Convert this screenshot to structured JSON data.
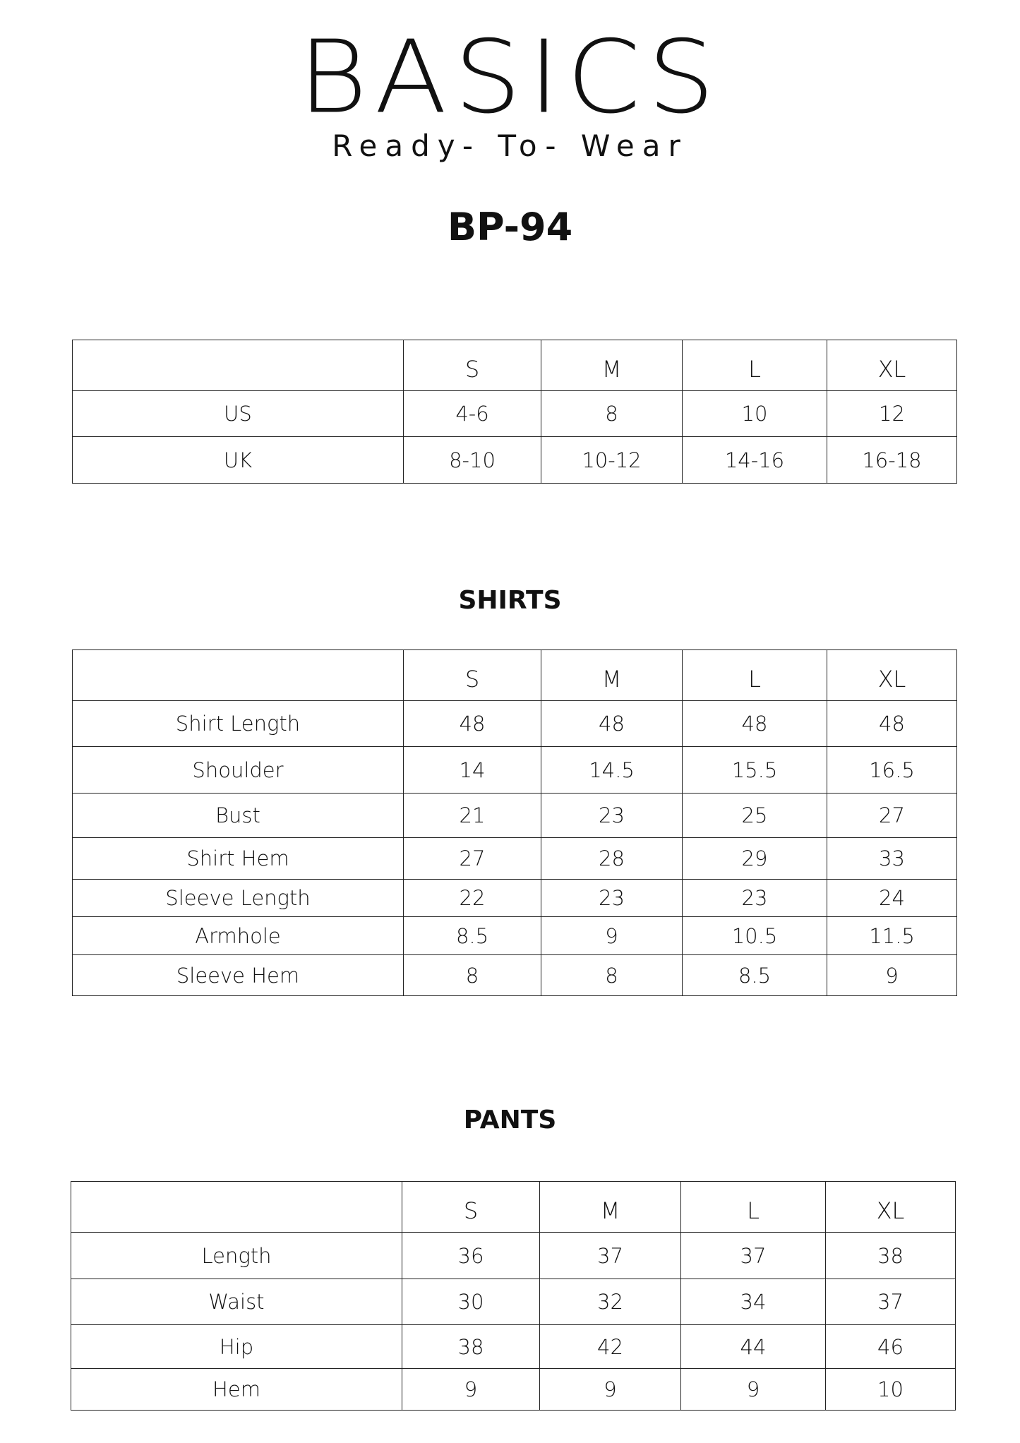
{
  "brand": {
    "logo": "BASICS",
    "tagline": "Ready- To- Wear"
  },
  "product_code": "BP-94",
  "size_table": {
    "headers": [
      "",
      "S",
      "M",
      "L",
      "XL"
    ],
    "rows": [
      [
        "US",
        "4-6",
        "8",
        "10",
        "12"
      ],
      [
        "UK",
        "8-10",
        "10-12",
        "14-16",
        "16-18"
      ]
    ]
  },
  "shirts": {
    "title": "SHIRTS",
    "headers": [
      "",
      "S",
      "M",
      "L",
      "XL"
    ],
    "rows": [
      [
        "Shirt Length",
        "48",
        "48",
        "48",
        "48"
      ],
      [
        "Shoulder",
        "14",
        "14.5",
        "15.5",
        "16.5"
      ],
      [
        "Bust",
        "21",
        "23",
        "25",
        "27"
      ],
      [
        "Shirt Hem",
        "27",
        "28",
        "29",
        "33"
      ],
      [
        "Sleeve Length",
        "22",
        "23",
        "23",
        "24"
      ],
      [
        "Armhole",
        "8.5",
        "9",
        "10.5",
        "11.5"
      ],
      [
        "Sleeve Hem",
        "8",
        "8",
        "8.5",
        "9"
      ]
    ]
  },
  "pants": {
    "title": "PANTS",
    "headers": [
      "",
      "S",
      "M",
      "L",
      "XL"
    ],
    "rows": [
      [
        "Length",
        "36",
        "37",
        "37",
        "38"
      ],
      [
        "Waist",
        "30",
        "32",
        "34",
        "37"
      ],
      [
        "Hip",
        "38",
        "42",
        "44",
        "46"
      ],
      [
        "Hem",
        "9",
        "9",
        "9",
        "10"
      ]
    ]
  }
}
